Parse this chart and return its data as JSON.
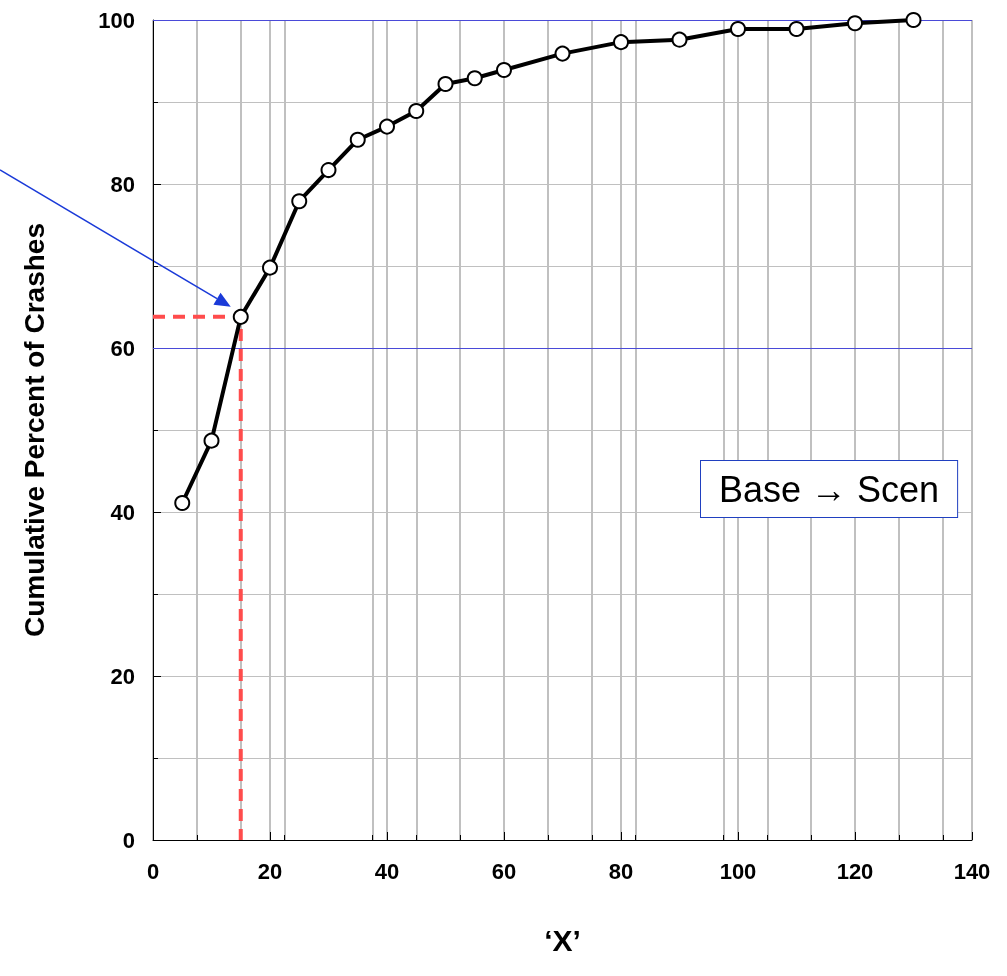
{
  "chart_data": {
    "type": "line",
    "xlabel": "‘X’",
    "ylabel": "Cumulative Percent of Crashes",
    "series": [
      {
        "color": "#000000",
        "x": [
          5,
          10,
          15,
          20,
          25,
          30,
          35,
          40,
          45,
          50,
          55,
          60,
          70,
          80,
          90,
          100,
          110,
          120,
          130
        ],
        "values": [
          41.1,
          48.7,
          63.8,
          69.8,
          77.9,
          81.7,
          85.4,
          87,
          88.9,
          92.2,
          92.9,
          93.9,
          95.9,
          97.3,
          97.6,
          98.9,
          98.9,
          99.6,
          100
        ],
        "marker": "circle",
        "line_style": "solid"
      },
      {
        "color": "#ff4c4c",
        "x": [
          0,
          15,
          15
        ],
        "values": [
          63.8,
          63.8,
          0
        ],
        "marker": "none",
        "line_style": "dashed"
      }
    ],
    "xlim": [
      0,
      140
    ],
    "xticks": [
      0,
      20,
      40,
      60,
      80,
      100,
      120,
      140
    ],
    "ylim": [
      0,
      100
    ],
    "yticks": [
      0,
      20,
      40,
      60,
      80,
      100
    ],
    "ref_lines": [
      {
        "axis": "y",
        "value": 60,
        "color": "#4a4ad8"
      },
      {
        "axis": "y",
        "value": 100,
        "color": "#4a4ad8"
      }
    ],
    "grid": true,
    "annotations": [
      "Base → Scen"
    ]
  }
}
